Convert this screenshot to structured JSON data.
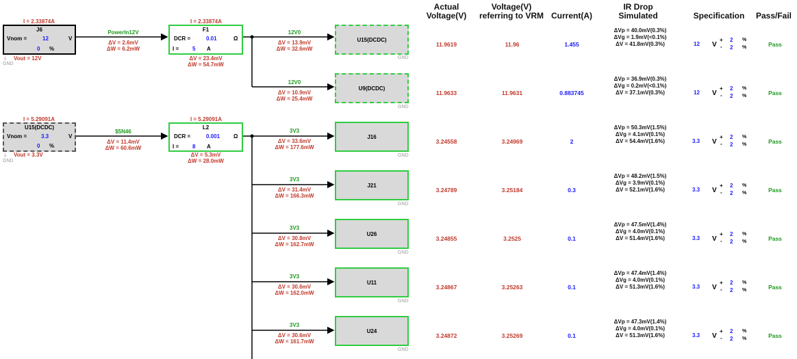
{
  "sources": [
    {
      "current": "I = 2.33874A",
      "name": "J6",
      "vnom_label": "Vnom =",
      "vnom": "12",
      "vnom_unit": "V",
      "pct": "0",
      "pct_unit": "%",
      "vout": "Vout = 12V",
      "gnd": "GND"
    },
    {
      "current": "I = 5.29091A",
      "name": "U15(DCDC)",
      "vnom_label": "Vnom =",
      "vnom": "3.3",
      "vnom_unit": "V",
      "pct": "0",
      "pct_unit": "%",
      "vout": "Vout = 3.3V",
      "gnd": "GND"
    }
  ],
  "wires": [
    {
      "net": "PowerIn12V",
      "dv": "ΔV = 2.6mV",
      "dw": "ΔW = 6.2mW"
    },
    {
      "net": "$5N46",
      "dv": "ΔV = 11.4mV",
      "dw": "ΔW = 60.6mW"
    }
  ],
  "components": [
    {
      "current": "I = 2.33874A",
      "name": "F1",
      "dcr_label": "DCR =",
      "dcr": "0.01",
      "dcr_unit": "Ω",
      "i_label": "I =",
      "i": "5",
      "i_unit": "A",
      "dv": "ΔV = 23.4mV",
      "dw": "ΔW = 54.7mW"
    },
    {
      "current": "I = 5.29091A",
      "name": "L2",
      "dcr_label": "DCR =",
      "dcr": "0.001",
      "dcr_unit": "Ω",
      "i_label": "I =",
      "i": "8",
      "i_unit": "A",
      "dv": "ΔV = 5.3mV",
      "dw": "ΔW = 28.0mW"
    }
  ],
  "loads": [
    {
      "net": "12V0",
      "dv": "ΔV = 13.9mV",
      "dw": "ΔW = 32.6mW",
      "name": "U15(DCDC)",
      "gnd": "GND"
    },
    {
      "net": "12V0",
      "dv": "ΔV = 10.9mV",
      "dw": "ΔW = 25.4mW",
      "name": "U9(DCDC)",
      "gnd": "GND"
    },
    {
      "net": "3V3",
      "dv": "ΔV = 33.6mV",
      "dw": "ΔW = 177.6mW",
      "name": "J16",
      "gnd": "GND"
    },
    {
      "net": "3V3",
      "dv": "ΔV = 31.4mV",
      "dw": "ΔW = 166.3mW",
      "name": "J21",
      "gnd": "GND"
    },
    {
      "net": "3V3",
      "dv": "ΔV = 30.8mV",
      "dw": "ΔW = 162.7mW",
      "name": "U26",
      "gnd": "GND"
    },
    {
      "net": "3V3",
      "dv": "ΔV = 30.6mV",
      "dw": "ΔW = 162.0mW",
      "name": "U11",
      "gnd": "GND"
    },
    {
      "net": "3V3",
      "dv": "ΔV = 30.6mV",
      "dw": "ΔW = 161.7mW",
      "name": "U24",
      "gnd": "GND"
    }
  ],
  "table": {
    "headers": {
      "actual": "Actual\nVoltage(V)",
      "vrm": "Voltage(V)\nreferring to VRM",
      "current": "Current(A)",
      "ir": "IR Drop\nSimulated",
      "spec": "Specification",
      "pass": "Pass/Fail"
    },
    "rows": [
      {
        "actual": "11.9619",
        "vrm": "11.96",
        "current": "1.455",
        "ir1": "ΔVp = 40.0mV(0.3%)",
        "ir2": "ΔVg = 1.9mV(<0.1%)",
        "ir3": "ΔV = 41.8mV(0.3%)",
        "spec_v": "12",
        "spec_unit": "V",
        "plus": "+",
        "minus": "-",
        "tol_plus": "2",
        "tol_minus": "2",
        "pct": "%",
        "result": "Pass"
      },
      {
        "actual": "11.9633",
        "vrm": "11.9631",
        "current": "0.883745",
        "ir1": "ΔVp = 36.9mV(0.3%)",
        "ir2": "ΔVg = 0.2mV(<0.1%)",
        "ir3": "ΔV = 37.1mV(0.3%)",
        "spec_v": "12",
        "spec_unit": "V",
        "plus": "+",
        "minus": "-",
        "tol_plus": "2",
        "tol_minus": "2",
        "pct": "%",
        "result": "Pass"
      },
      {
        "actual": "3.24558",
        "vrm": "3.24969",
        "current": "2",
        "ir1": "ΔVp = 50.3mV(1.5%)",
        "ir2": "ΔVg = 4.1mV(0.1%)",
        "ir3": "ΔV = 54.4mV(1.6%)",
        "spec_v": "3.3",
        "spec_unit": "V",
        "plus": "+",
        "minus": "-",
        "tol_plus": "2",
        "tol_minus": "2",
        "pct": "%",
        "result": "Pass"
      },
      {
        "actual": "3.24789",
        "vrm": "3.25184",
        "current": "0.3",
        "ir1": "ΔVp = 48.2mV(1.5%)",
        "ir2": "ΔVg = 3.9mV(0.1%)",
        "ir3": "ΔV = 52.1mV(1.6%)",
        "spec_v": "3.3",
        "spec_unit": "V",
        "plus": "+",
        "minus": "-",
        "tol_plus": "2",
        "tol_minus": "2",
        "pct": "%",
        "result": "Pass"
      },
      {
        "actual": "3.24855",
        "vrm": "3.2525",
        "current": "0.1",
        "ir1": "ΔVp = 47.5mV(1.4%)",
        "ir2": "ΔVg = 4.0mV(0.1%)",
        "ir3": "ΔV = 51.4mV(1.6%)",
        "spec_v": "3.3",
        "spec_unit": "V",
        "plus": "+",
        "minus": "-",
        "tol_plus": "2",
        "tol_minus": "2",
        "pct": "%",
        "result": "Pass"
      },
      {
        "actual": "3.24867",
        "vrm": "3.25263",
        "current": "0.1",
        "ir1": "ΔVp = 47.4mV(1.4%)",
        "ir2": "ΔVg = 4.0mV(0.1%)",
        "ir3": "ΔV = 51.3mV(1.6%)",
        "spec_v": "3.3",
        "spec_unit": "V",
        "plus": "+",
        "minus": "-",
        "tol_plus": "2",
        "tol_minus": "2",
        "pct": "%",
        "result": "Pass"
      },
      {
        "actual": "3.24872",
        "vrm": "3.25269",
        "current": "0.1",
        "ir1": "ΔVp = 47.3mV(1.4%)",
        "ir2": "ΔVg = 4.0mV(0.1%)",
        "ir3": "ΔV = 51.3mV(1.6%)",
        "spec_v": "3.3",
        "spec_unit": "V",
        "plus": "+",
        "minus": "-",
        "tol_plus": "2",
        "tol_minus": "2",
        "pct": "%",
        "result": "Pass"
      }
    ]
  },
  "colors": {
    "wire": "#000000",
    "border_green": "#2ecc40",
    "value_red": "#c0392b",
    "value_blue": "#1a1aff",
    "pass_green": "#1e9a1e"
  }
}
